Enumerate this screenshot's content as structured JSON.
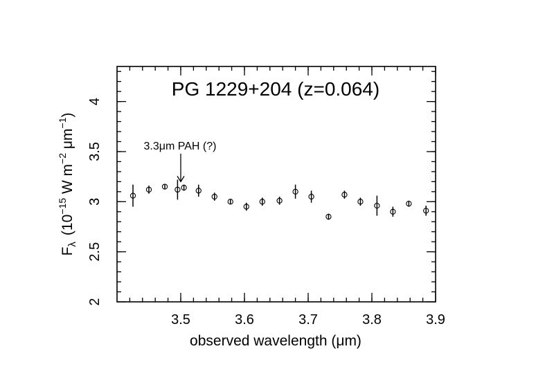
{
  "chart_data": {
    "type": "scatter",
    "title": "PG 1229+204 (z=0.064)",
    "xlabel": "observed wavelength (μm)",
    "ylabel": {
      "prefix": "F",
      "prefix_sub": "λ",
      "unit_open": "(10",
      "exp1": "−15",
      "unit_mid": " W m",
      "exp2": "−2",
      "unit_mid2": " μm",
      "exp3": "−1",
      "unit_close": ")"
    },
    "xlim": [
      3.4,
      3.9
    ],
    "ylim": [
      2.0,
      4.35
    ],
    "xticks": [
      3.5,
      3.6,
      3.7,
      3.8,
      3.9
    ],
    "xtick_labels": [
      "3.5",
      "3.6",
      "3.7",
      "3.8",
      "3.9"
    ],
    "yticks": [
      2.0,
      2.5,
      3.0,
      3.5,
      4.0
    ],
    "ytick_labels": [
      "2",
      "2.5",
      "3",
      "3.5",
      "4"
    ],
    "x_minor_step": 0.02,
    "y_minor_step": 0.1,
    "annotation": {
      "text": "3.3μm PAH (?)",
      "x": 3.5,
      "y_arrow_tip": 3.2
    },
    "points": [
      {
        "x": 3.425,
        "y": 3.06,
        "err": 0.11
      },
      {
        "x": 3.45,
        "y": 3.12,
        "err": 0.04
      },
      {
        "x": 3.475,
        "y": 3.15,
        "err": 0.02
      },
      {
        "x": 3.495,
        "y": 3.12,
        "err": 0.1
      },
      {
        "x": 3.505,
        "y": 3.14,
        "err": 0.03
      },
      {
        "x": 3.528,
        "y": 3.11,
        "err": 0.06
      },
      {
        "x": 3.553,
        "y": 3.05,
        "err": 0.04
      },
      {
        "x": 3.578,
        "y": 3.0,
        "err": 0.02
      },
      {
        "x": 3.603,
        "y": 2.95,
        "err": 0.04
      },
      {
        "x": 3.628,
        "y": 3.0,
        "err": 0.04
      },
      {
        "x": 3.655,
        "y": 3.01,
        "err": 0.04
      },
      {
        "x": 3.68,
        "y": 3.1,
        "err": 0.07
      },
      {
        "x": 3.705,
        "y": 3.05,
        "err": 0.06
      },
      {
        "x": 3.732,
        "y": 2.85,
        "err": 0.03
      },
      {
        "x": 3.757,
        "y": 3.07,
        "err": 0.04
      },
      {
        "x": 3.782,
        "y": 3.0,
        "err": 0.04
      },
      {
        "x": 3.808,
        "y": 2.96,
        "err": 0.1
      },
      {
        "x": 3.833,
        "y": 2.9,
        "err": 0.05
      },
      {
        "x": 3.858,
        "y": 2.98,
        "err": 0.03
      },
      {
        "x": 3.885,
        "y": 2.91,
        "err": 0.05
      }
    ]
  }
}
